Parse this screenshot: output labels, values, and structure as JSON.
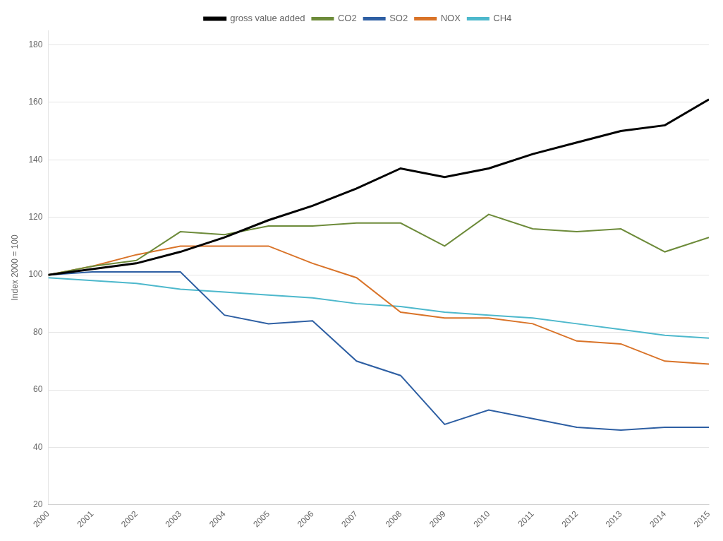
{
  "chart_data": {
    "type": "line",
    "y_label": "Index 2000 = 100",
    "x": [
      2000,
      2001,
      2002,
      2003,
      2004,
      2005,
      2006,
      2007,
      2008,
      2009,
      2010,
      2011,
      2012,
      2013,
      2014,
      2015
    ],
    "series": [
      {
        "name": "gross value added",
        "color": "#000000",
        "values": [
          100,
          102,
          104,
          108,
          113,
          119,
          124,
          130,
          137,
          134,
          137,
          142,
          146,
          150,
          152,
          161
        ]
      },
      {
        "name": "CO2",
        "color": "#6d8b3a",
        "values": [
          100,
          103,
          105,
          115,
          114,
          117,
          117,
          118,
          118,
          110,
          121,
          116,
          115,
          116,
          108,
          113
        ]
      },
      {
        "name": "SO2",
        "color": "#2e5fa3",
        "values": [
          100,
          101,
          101,
          101,
          86,
          83,
          84,
          70,
          65,
          48,
          53,
          50,
          47,
          46,
          47,
          47
        ]
      },
      {
        "name": "NOX",
        "color": "#d97328",
        "values": [
          100,
          103,
          107,
          110,
          110,
          110,
          104,
          99,
          87,
          85,
          85,
          83,
          77,
          76,
          70,
          69
        ]
      },
      {
        "name": "CH4",
        "color": "#4db8cc",
        "values": [
          99,
          98,
          97,
          95,
          94,
          93,
          92,
          90,
          89,
          87,
          86,
          85,
          83,
          81,
          79,
          78
        ]
      }
    ],
    "xlim": [
      2000,
      2015
    ],
    "xticks": [
      2000,
      2001,
      2002,
      2003,
      2004,
      2005,
      2006,
      2007,
      2008,
      2009,
      2010,
      2011,
      2012,
      2013,
      2014,
      2015
    ],
    "ylim": [
      20,
      185
    ],
    "yticks": [
      20,
      40,
      60,
      80,
      100,
      120,
      140,
      160,
      180
    ],
    "grid": "y",
    "legend": "top"
  }
}
